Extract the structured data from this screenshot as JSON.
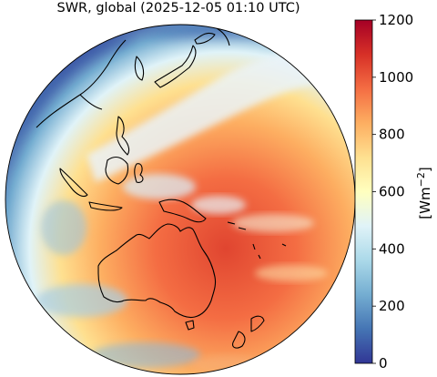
{
  "title": "SWR, global (2025-12-05 01:10 UTC)",
  "colorbar": {
    "label_main": "[Wm",
    "label_exp": "−2",
    "label_close": "]",
    "ticks": [
      "0",
      "200",
      "400",
      "600",
      "800",
      "1000",
      "1200"
    ],
    "range": [
      0,
      1200
    ],
    "colormap": "RdYlBu_r",
    "colors": [
      "#313695",
      "#4575b4",
      "#74add1",
      "#abd9e9",
      "#e0f3f8",
      "#ffffbf",
      "#fee090",
      "#fdae61",
      "#f46d43",
      "#d73027",
      "#a50026"
    ]
  },
  "map": {
    "projection": "orthographic",
    "region": "East Asia / Maritime Continent / Australia / Western Pacific",
    "coastline_color": "#000000",
    "land_regions": [
      "Australia",
      "New Guinea",
      "Borneo",
      "Sumatra",
      "Japan",
      "Korea",
      "Philippines",
      "New Zealand",
      "China coast"
    ]
  }
}
